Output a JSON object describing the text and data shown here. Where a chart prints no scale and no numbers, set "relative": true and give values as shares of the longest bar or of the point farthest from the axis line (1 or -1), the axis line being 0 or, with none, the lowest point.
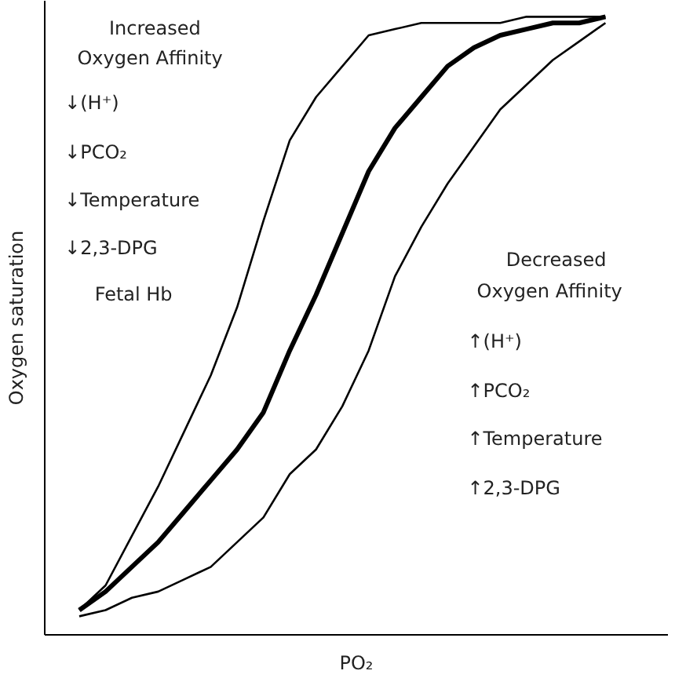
{
  "chart_data": {
    "type": "line",
    "relative": true,
    "xlabel": "PO₂",
    "ylabel": "Oxygen saturation",
    "grid": false,
    "categories": [
      null,
      null,
      null,
      null,
      null,
      null,
      null,
      null,
      null,
      null,
      null,
      null,
      null,
      null,
      null,
      null,
      null,
      null,
      null,
      null,
      null
    ],
    "series": [
      {
        "color": "#000000",
        "values": [
          0.04,
          0.08,
          0.16,
          0.24,
          0.33,
          0.42,
          0.53,
          0.67,
          0.8,
          0.87,
          0.92,
          0.97,
          0.98,
          0.99,
          0.99,
          0.99,
          0.99,
          1.0,
          1.0,
          1.0,
          1.0
        ]
      },
      {
        "color": "#000000",
        "values": [
          0.04,
          0.07,
          0.11,
          0.15,
          0.2,
          0.25,
          0.3,
          0.36,
          0.46,
          0.55,
          0.65,
          0.75,
          0.82,
          0.87,
          0.92,
          0.95,
          0.97,
          0.98,
          0.99,
          0.99,
          1.0
        ]
      },
      {
        "color": "#000000",
        "values": [
          0.03,
          0.04,
          0.06,
          0.07,
          0.09,
          0.11,
          0.15,
          0.19,
          0.26,
          0.3,
          0.37,
          0.46,
          0.58,
          0.66,
          0.73,
          0.79,
          0.85,
          0.89,
          0.93,
          0.96,
          0.99
        ]
      }
    ],
    "annotations": [
      "Increased",
      "Oxygen Affinity",
      "↓(H⁺)",
      "↓PCO₂",
      "↓Temperature",
      "↓2,3-DPG",
      "Fetal Hb",
      "Decreased",
      "Oxygen Affinity",
      "↑(H⁺)",
      "↑PCO₂",
      "↑Temperature",
      "↑2,3-DPG"
    ]
  }
}
